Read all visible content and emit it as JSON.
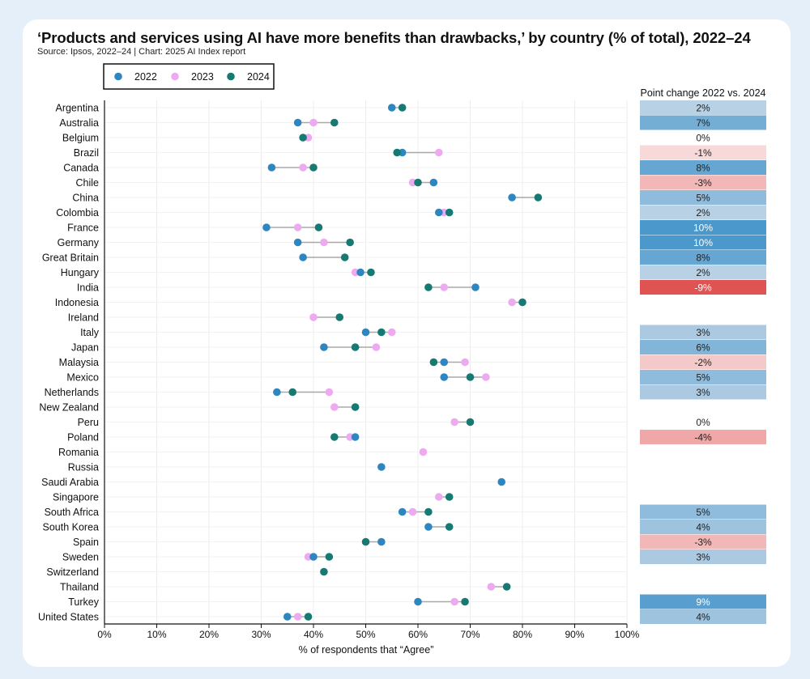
{
  "title": "‘Products and services using AI have more benefits than drawbacks,’ by country (% of total), 2022–24",
  "source": "Source: Ipsos, 2022–24 | Chart: 2025 AI Index report",
  "chart_data": {
    "type": "dumbbell",
    "xlabel": "% of respondents that “Agree”",
    "xlim": [
      0,
      100
    ],
    "x_ticks": [
      "0%",
      "10%",
      "20%",
      "30%",
      "40%",
      "50%",
      "60%",
      "70%",
      "80%",
      "90%",
      "100%"
    ],
    "legend": {
      "placement": "top-left",
      "entries": [
        "2022",
        "2023",
        "2024"
      ]
    },
    "series_colors": {
      "2022": "#2e86c1",
      "2023": "#eeaaf0",
      "2024": "#167a73"
    },
    "change_column_title": "Point change 2022 vs. 2024",
    "change_colors": {
      "positive": "#4a98cc",
      "negative": "#e05353"
    },
    "rows": [
      {
        "country": "Argentina",
        "v2022": 55,
        "v2023": null,
        "v2024": 57,
        "change": "2%"
      },
      {
        "country": "Australia",
        "v2022": 37,
        "v2023": 40,
        "v2024": 44,
        "change": "7%"
      },
      {
        "country": "Belgium",
        "v2022": null,
        "v2023": 39,
        "v2024": 38,
        "change": "0%"
      },
      {
        "country": "Brazil",
        "v2022": 57,
        "v2023": 64,
        "v2024": 56,
        "change": "-1%"
      },
      {
        "country": "Canada",
        "v2022": 32,
        "v2023": 38,
        "v2024": 40,
        "change": "8%"
      },
      {
        "country": "Chile",
        "v2022": 63,
        "v2023": 59,
        "v2024": 60,
        "change": "-3%"
      },
      {
        "country": "China",
        "v2022": 78,
        "v2023": null,
        "v2024": 83,
        "change": "5%"
      },
      {
        "country": "Colombia",
        "v2022": 64,
        "v2023": 65,
        "v2024": 66,
        "change": "2%"
      },
      {
        "country": "France",
        "v2022": 31,
        "v2023": 37,
        "v2024": 41,
        "change": "10%"
      },
      {
        "country": "Germany",
        "v2022": 37,
        "v2023": 42,
        "v2024": 47,
        "change": "10%"
      },
      {
        "country": "Great Britain",
        "v2022": 38,
        "v2023": null,
        "v2024": 46,
        "change": "8%"
      },
      {
        "country": "Hungary",
        "v2022": 49,
        "v2023": 48,
        "v2024": 51,
        "change": "2%"
      },
      {
        "country": "India",
        "v2022": 71,
        "v2023": 65,
        "v2024": 62,
        "change": "-9%"
      },
      {
        "country": "Indonesia",
        "v2022": null,
        "v2023": 78,
        "v2024": 80,
        "change": null
      },
      {
        "country": "Ireland",
        "v2022": null,
        "v2023": 40,
        "v2024": 45,
        "change": null
      },
      {
        "country": "Italy",
        "v2022": 50,
        "v2023": 55,
        "v2024": 53,
        "change": "3%"
      },
      {
        "country": "Japan",
        "v2022": 42,
        "v2023": 52,
        "v2024": 48,
        "change": "6%"
      },
      {
        "country": "Malaysia",
        "v2022": 65,
        "v2023": 69,
        "v2024": 63,
        "change": "-2%"
      },
      {
        "country": "Mexico",
        "v2022": 65,
        "v2023": 73,
        "v2024": 70,
        "change": "5%"
      },
      {
        "country": "Netherlands",
        "v2022": 33,
        "v2023": 43,
        "v2024": 36,
        "change": "3%"
      },
      {
        "country": "New Zealand",
        "v2022": null,
        "v2023": 44,
        "v2024": 48,
        "change": null
      },
      {
        "country": "Peru",
        "v2022": null,
        "v2023": 67,
        "v2024": 70,
        "change": "0%"
      },
      {
        "country": "Poland",
        "v2022": 48,
        "v2023": 47,
        "v2024": 44,
        "change": "-4%"
      },
      {
        "country": "Romania",
        "v2022": null,
        "v2023": 61,
        "v2024": null,
        "change": null
      },
      {
        "country": "Russia",
        "v2022": 53,
        "v2023": null,
        "v2024": null,
        "change": null
      },
      {
        "country": "Saudi Arabia",
        "v2022": 76,
        "v2023": null,
        "v2024": null,
        "change": null
      },
      {
        "country": "Singapore",
        "v2022": null,
        "v2023": 64,
        "v2024": 66,
        "change": null
      },
      {
        "country": "South Africa",
        "v2022": 57,
        "v2023": 59,
        "v2024": 62,
        "change": "5%"
      },
      {
        "country": "South Korea",
        "v2022": 62,
        "v2023": null,
        "v2024": 66,
        "change": "4%"
      },
      {
        "country": "Spain",
        "v2022": 53,
        "v2023": null,
        "v2024": 50,
        "change": "-3%"
      },
      {
        "country": "Sweden",
        "v2022": 40,
        "v2023": 39,
        "v2024": 43,
        "change": "3%"
      },
      {
        "country": "Switzerland",
        "v2022": null,
        "v2023": null,
        "v2024": 42,
        "change": null
      },
      {
        "country": "Thailand",
        "v2022": null,
        "v2023": 74,
        "v2024": 77,
        "change": null
      },
      {
        "country": "Turkey",
        "v2022": 60,
        "v2023": 67,
        "v2024": 69,
        "change": "9%"
      },
      {
        "country": "United States",
        "v2022": 35,
        "v2023": 37,
        "v2024": 39,
        "change": "4%"
      }
    ]
  }
}
